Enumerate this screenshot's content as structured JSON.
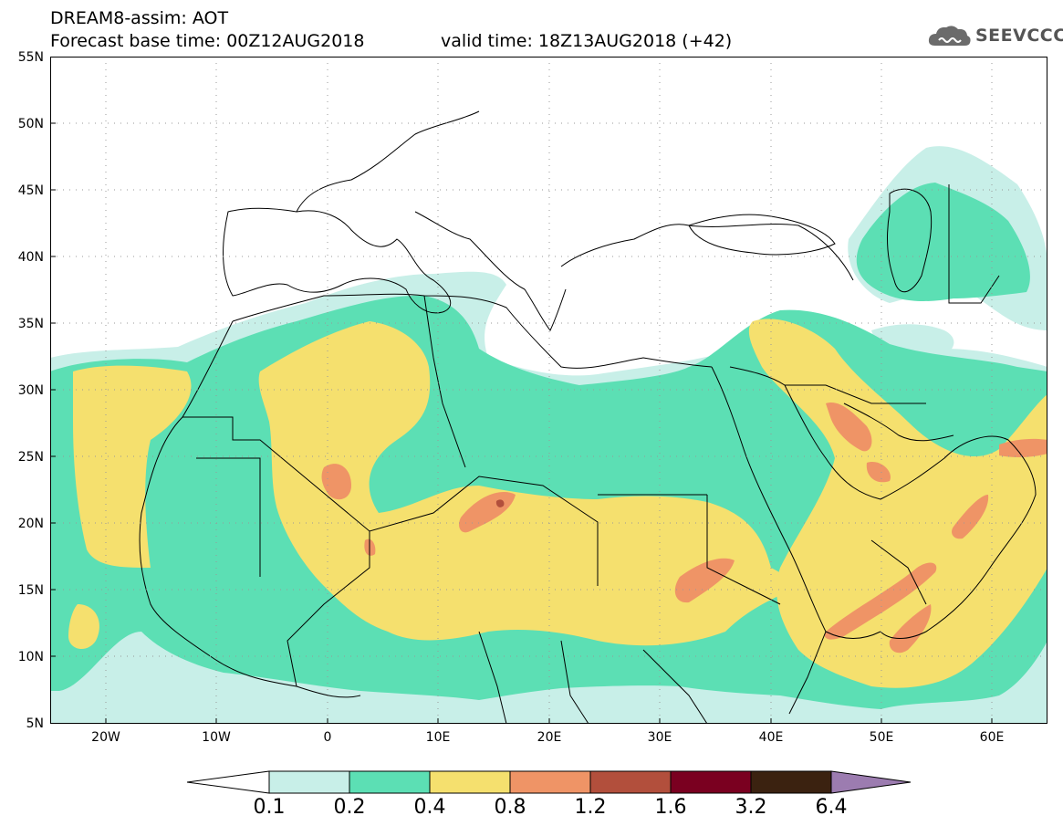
{
  "header": {
    "line1": "DREAM8-assim: AOT",
    "line2": "Forecast base time: 00Z12AUG2018",
    "valid": "valid time: 18Z13AUG2018 (+42)",
    "logo_text": "SEEVCCC",
    "logo_icon": "cloud-icon"
  },
  "axes": {
    "lat_labels": [
      "55N",
      "50N",
      "45N",
      "40N",
      "35N",
      "30N",
      "25N",
      "20N",
      "15N",
      "10N",
      "5N"
    ],
    "lon_labels": [
      "20W",
      "10W",
      "0",
      "10E",
      "20E",
      "30E",
      "40E",
      "50E",
      "60E"
    ],
    "lon_range": [
      "25W",
      "65E"
    ],
    "lat_range": [
      "5N",
      "55N"
    ],
    "grid": "dotted"
  },
  "colorbar": {
    "levels": [
      "0.1",
      "0.2",
      "0.4",
      "0.8",
      "1.2",
      "1.6",
      "3.2",
      "6.4"
    ],
    "colors": [
      "#c8efe8",
      "#5cdfb4",
      "#f5e06e",
      "#ef9466",
      "#b24f3c",
      "#7a0020",
      "#3b2210",
      "#9c7cb0"
    ],
    "below_color": "#ffffff"
  },
  "colors": {
    "bin_01_02": "#c8efe8",
    "bin_02_04": "#5cdfb4",
    "bin_04_08": "#f5e06e",
    "bin_08_12": "#ef9466",
    "bin_12_16": "#b24f3c"
  }
}
